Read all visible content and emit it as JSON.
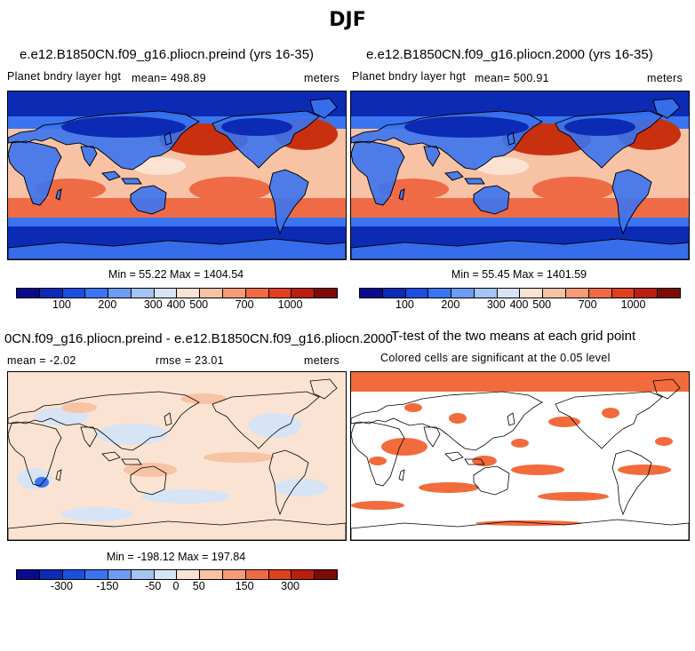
{
  "title": "DJF",
  "panels": [
    {
      "title": "e.e12.B1850CN.f09_g16.pliocn.preind (yrs 16-35)",
      "variable": "Planet bndry layer hgt",
      "mean_label": "mean= 498.89",
      "units": "meters",
      "minmax": "Min =  55.22 Max = 1404.54"
    },
    {
      "title": "e.e12.B1850CN.f09_g16.pliocn.2000 (yrs 16-35)",
      "variable": "Planet bndry layer hgt",
      "mean_label": "mean= 500.91",
      "units": "meters",
      "minmax": "Min =  55.45 Max = 1401.59"
    },
    {
      "title": "0CN.f09_g16.pliocn.preind - e.e12.B1850CN.f09_g16.pliocn.2000",
      "mean_label": "mean =  -2.02",
      "rmse_label": "rmse =  23.01",
      "units": "meters",
      "minmax": "Min = -198.12 Max = 197.84"
    },
    {
      "title": "T-test of the two means at each grid point",
      "subtitle": "Colored cells are significant at the 0.05 level"
    }
  ],
  "colorbars": {
    "colors": [
      "#0a0a8c",
      "#0c2bb5",
      "#1c4fde",
      "#3a74f0",
      "#6e9bf3",
      "#a5c3f3",
      "#d6e4f6",
      "#fae3d2",
      "#f8c2a4",
      "#f59b78",
      "#ef6b45",
      "#e0401c",
      "#b91e0e",
      "#7f0a05"
    ],
    "abs_labels": [
      "100",
      "200",
      "300",
      "400",
      "500",
      "700",
      "1000"
    ],
    "diff_labels": [
      "-300",
      "-150",
      "-50",
      "0",
      "50",
      "150",
      "300"
    ]
  },
  "map_colors": {
    "high": "#c8300f",
    "mid": "#ef6b45",
    "light": "#f8c2a4",
    "pale": "#fae3d2",
    "blue": "#3a74f0",
    "deepblue": "#0c2bb5",
    "paleblue": "#d6e4f6",
    "sig": "#f26b3c"
  }
}
